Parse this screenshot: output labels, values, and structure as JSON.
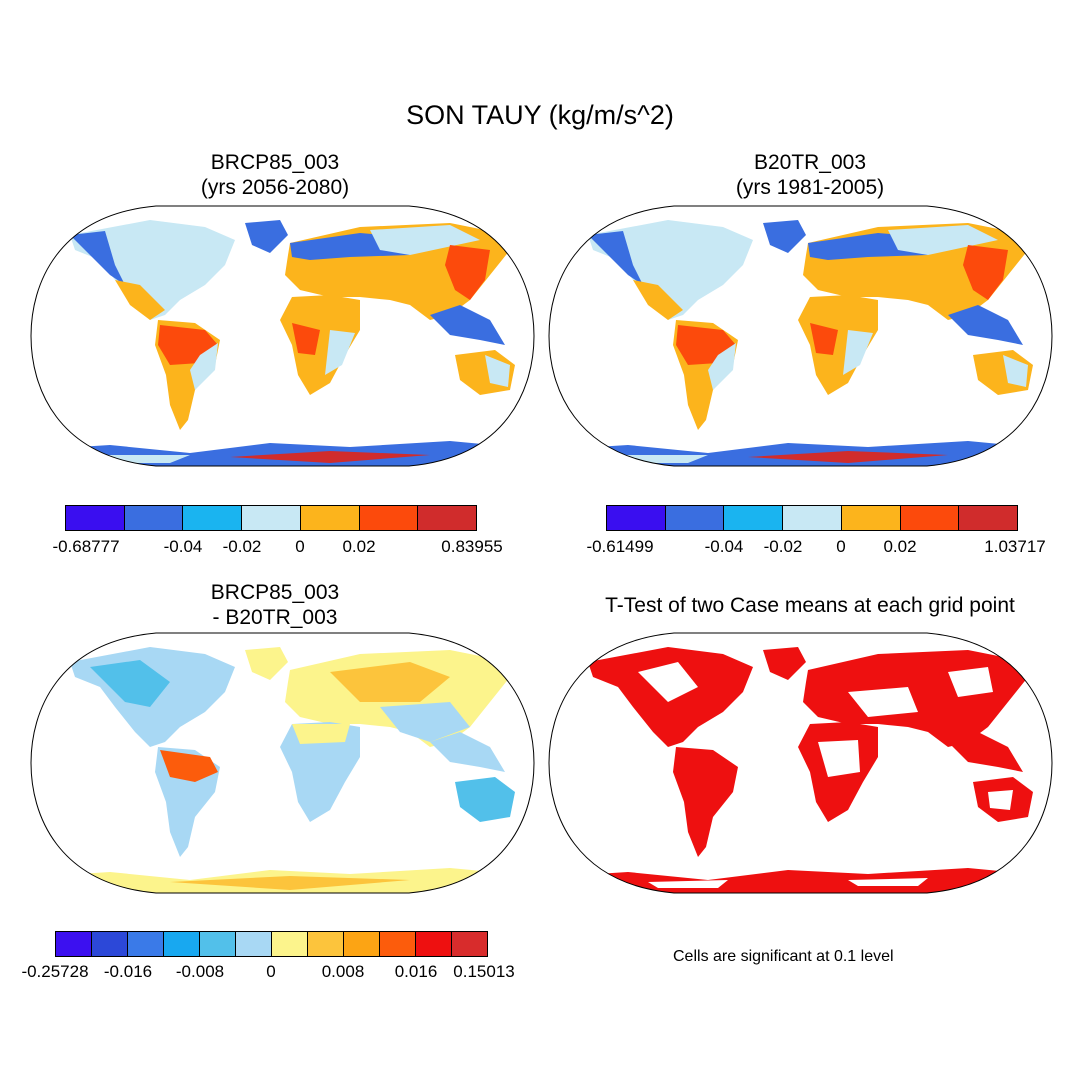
{
  "title": "SON TAUY (kg/m/s^2)",
  "panels": {
    "p1": {
      "line1": "BRCP85_003",
      "line2": "(yrs 2056-2080)"
    },
    "p2": {
      "line1": "B20TR_003",
      "line2": "(yrs 1981-2005)"
    },
    "p3": {
      "line1": "BRCP85_003",
      "line2": "- B20TR_003"
    },
    "p4": {
      "line1": "T-Test of two Case means at each grid point"
    }
  },
  "colorbars": {
    "cb1": {
      "colors": [
        "#3a0ef0",
        "#3a6ee0",
        "#1ab4f0",
        "#c8e8f4",
        "#fcb41c",
        "#fc4a0c",
        "#d02c2c"
      ],
      "labels": [
        "-0.68777",
        "-0.04",
        "-0.02",
        "0",
        "0.02",
        "0.83955"
      ]
    },
    "cb2": {
      "colors": [
        "#3a0ef0",
        "#3a6ee0",
        "#1ab4f0",
        "#c8e8f4",
        "#fcb41c",
        "#fc4a0c",
        "#d02c2c"
      ],
      "labels": [
        "-0.61499",
        "-0.04",
        "-0.02",
        "0",
        "0.02",
        "1.03717"
      ]
    },
    "cb3": {
      "colors": [
        "#3c10f0",
        "#2c48d8",
        "#3a7ae8",
        "#18a8f0",
        "#52c0ea",
        "#a8d8f4",
        "#fcf48c",
        "#fcc43c",
        "#fca414",
        "#fc5c0c",
        "#ee1010",
        "#d82c2c"
      ],
      "labels": [
        "-0.25728",
        "-0.016",
        "-0.008",
        "0",
        "0.008",
        "0.016",
        "0.15013"
      ]
    }
  },
  "ttest_note": "Cells are significant at 0.1 level"
}
